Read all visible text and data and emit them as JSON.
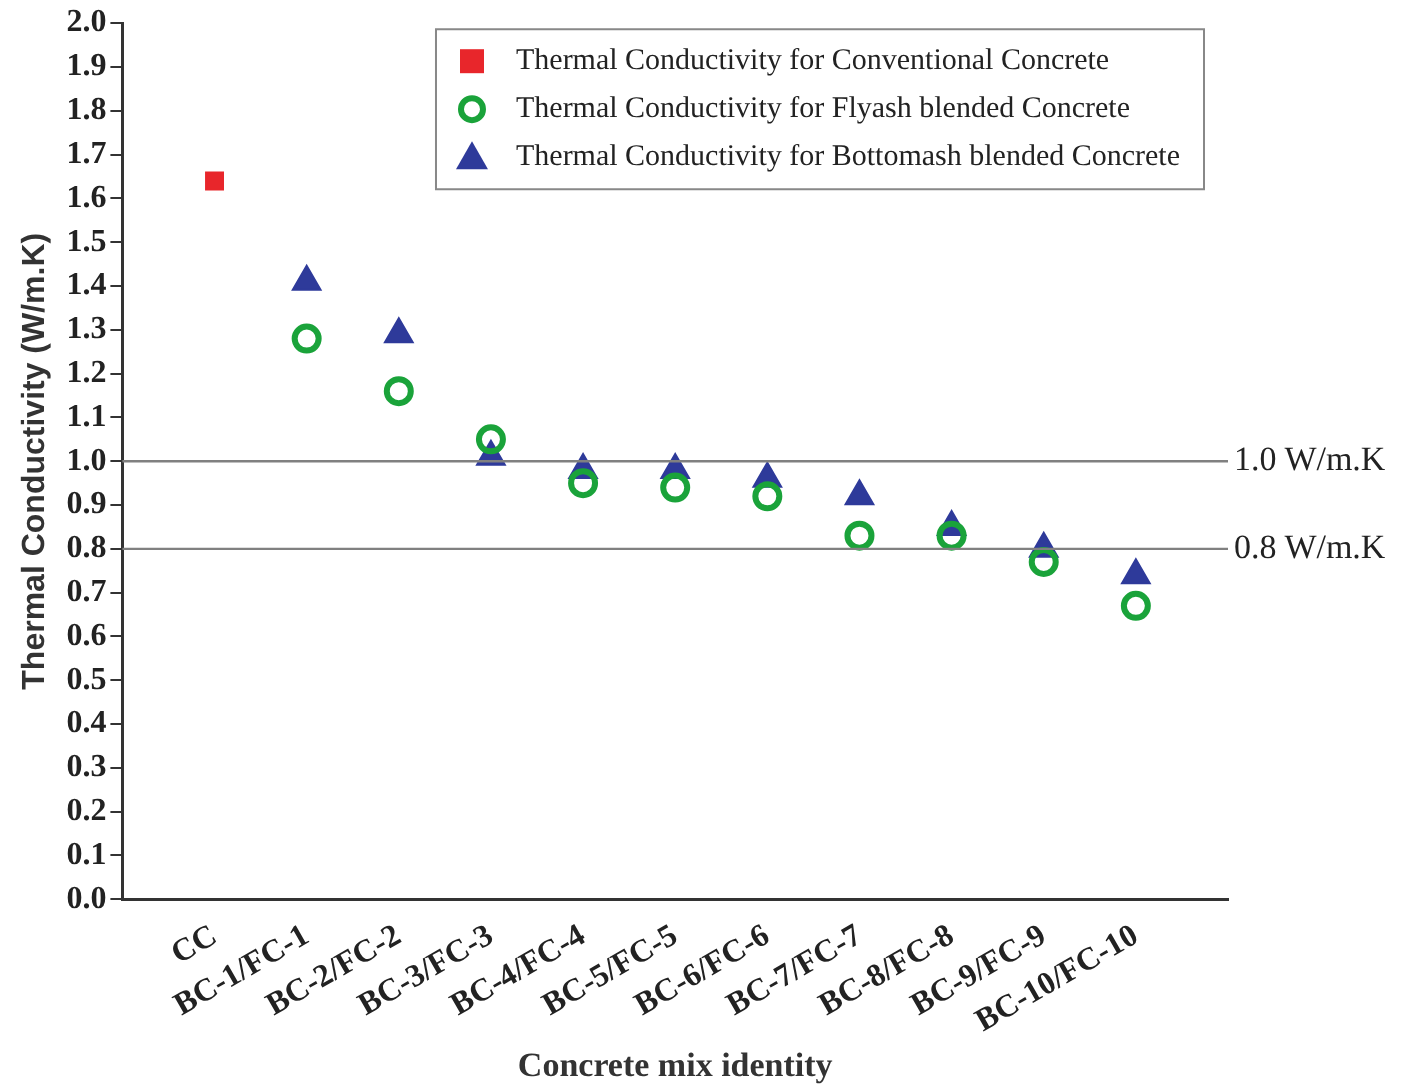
{
  "chart_data": {
    "type": "scatter",
    "xlabel": "Concrete mix identity",
    "ylabel": "Thermal Conductivity (W/m.K)",
    "categories": [
      "CC",
      "BC-1/FC-1",
      "BC-2/FC-2",
      "BC-3/FC-3",
      "BC-4/FC-4",
      "BC-5/FC-5",
      "BC-6/FC-6",
      "BC-7/FC-7",
      "BC-8/FC-8",
      "BC-9/FC-9",
      "BC-10/FC-10"
    ],
    "series": [
      {
        "name": "Thermal Conductivity for Conventional Concrete",
        "color": "#e8262b",
        "marker": "square",
        "values": [
          1.64,
          null,
          null,
          null,
          null,
          null,
          null,
          null,
          null,
          null,
          null
        ]
      },
      {
        "name": "Thermal Conductivity for Flyash blended Concrete",
        "color": "#1aa33a",
        "marker": "circle",
        "values": [
          null,
          1.28,
          1.16,
          1.05,
          0.95,
          0.94,
          0.92,
          0.83,
          0.83,
          0.77,
          0.67
        ]
      },
      {
        "name": "Thermal Conductivity for Bottomash blended Concrete",
        "color": "#2e3a9a",
        "marker": "triangle",
        "values": [
          null,
          1.41,
          1.29,
          1.01,
          0.98,
          0.98,
          0.96,
          0.92,
          0.85,
          0.8,
          0.74
        ]
      }
    ],
    "ylim": [
      0,
      2
    ],
    "yticks": [
      {
        "value": 0,
        "label": "0.0"
      },
      0.1,
      0.2,
      0.3,
      0.4,
      0.5,
      0.6,
      0.7,
      0.8,
      0.9,
      {
        "value": 1,
        "label": "1.0"
      },
      1.1,
      1.2,
      1.3,
      1.4,
      1.5,
      1.6,
      1.7,
      1.8,
      1.9,
      {
        "value": 2,
        "label": "2.0"
      }
    ],
    "ref_lines": [
      {
        "axis": "y",
        "value": 1,
        "label": "1.0 W/m.K",
        "color": "#808080"
      },
      {
        "axis": "y",
        "value": 0.8,
        "label": "0.8 W/m.K",
        "color": "#808080"
      }
    ],
    "grid": false,
    "legend": "top right"
  }
}
